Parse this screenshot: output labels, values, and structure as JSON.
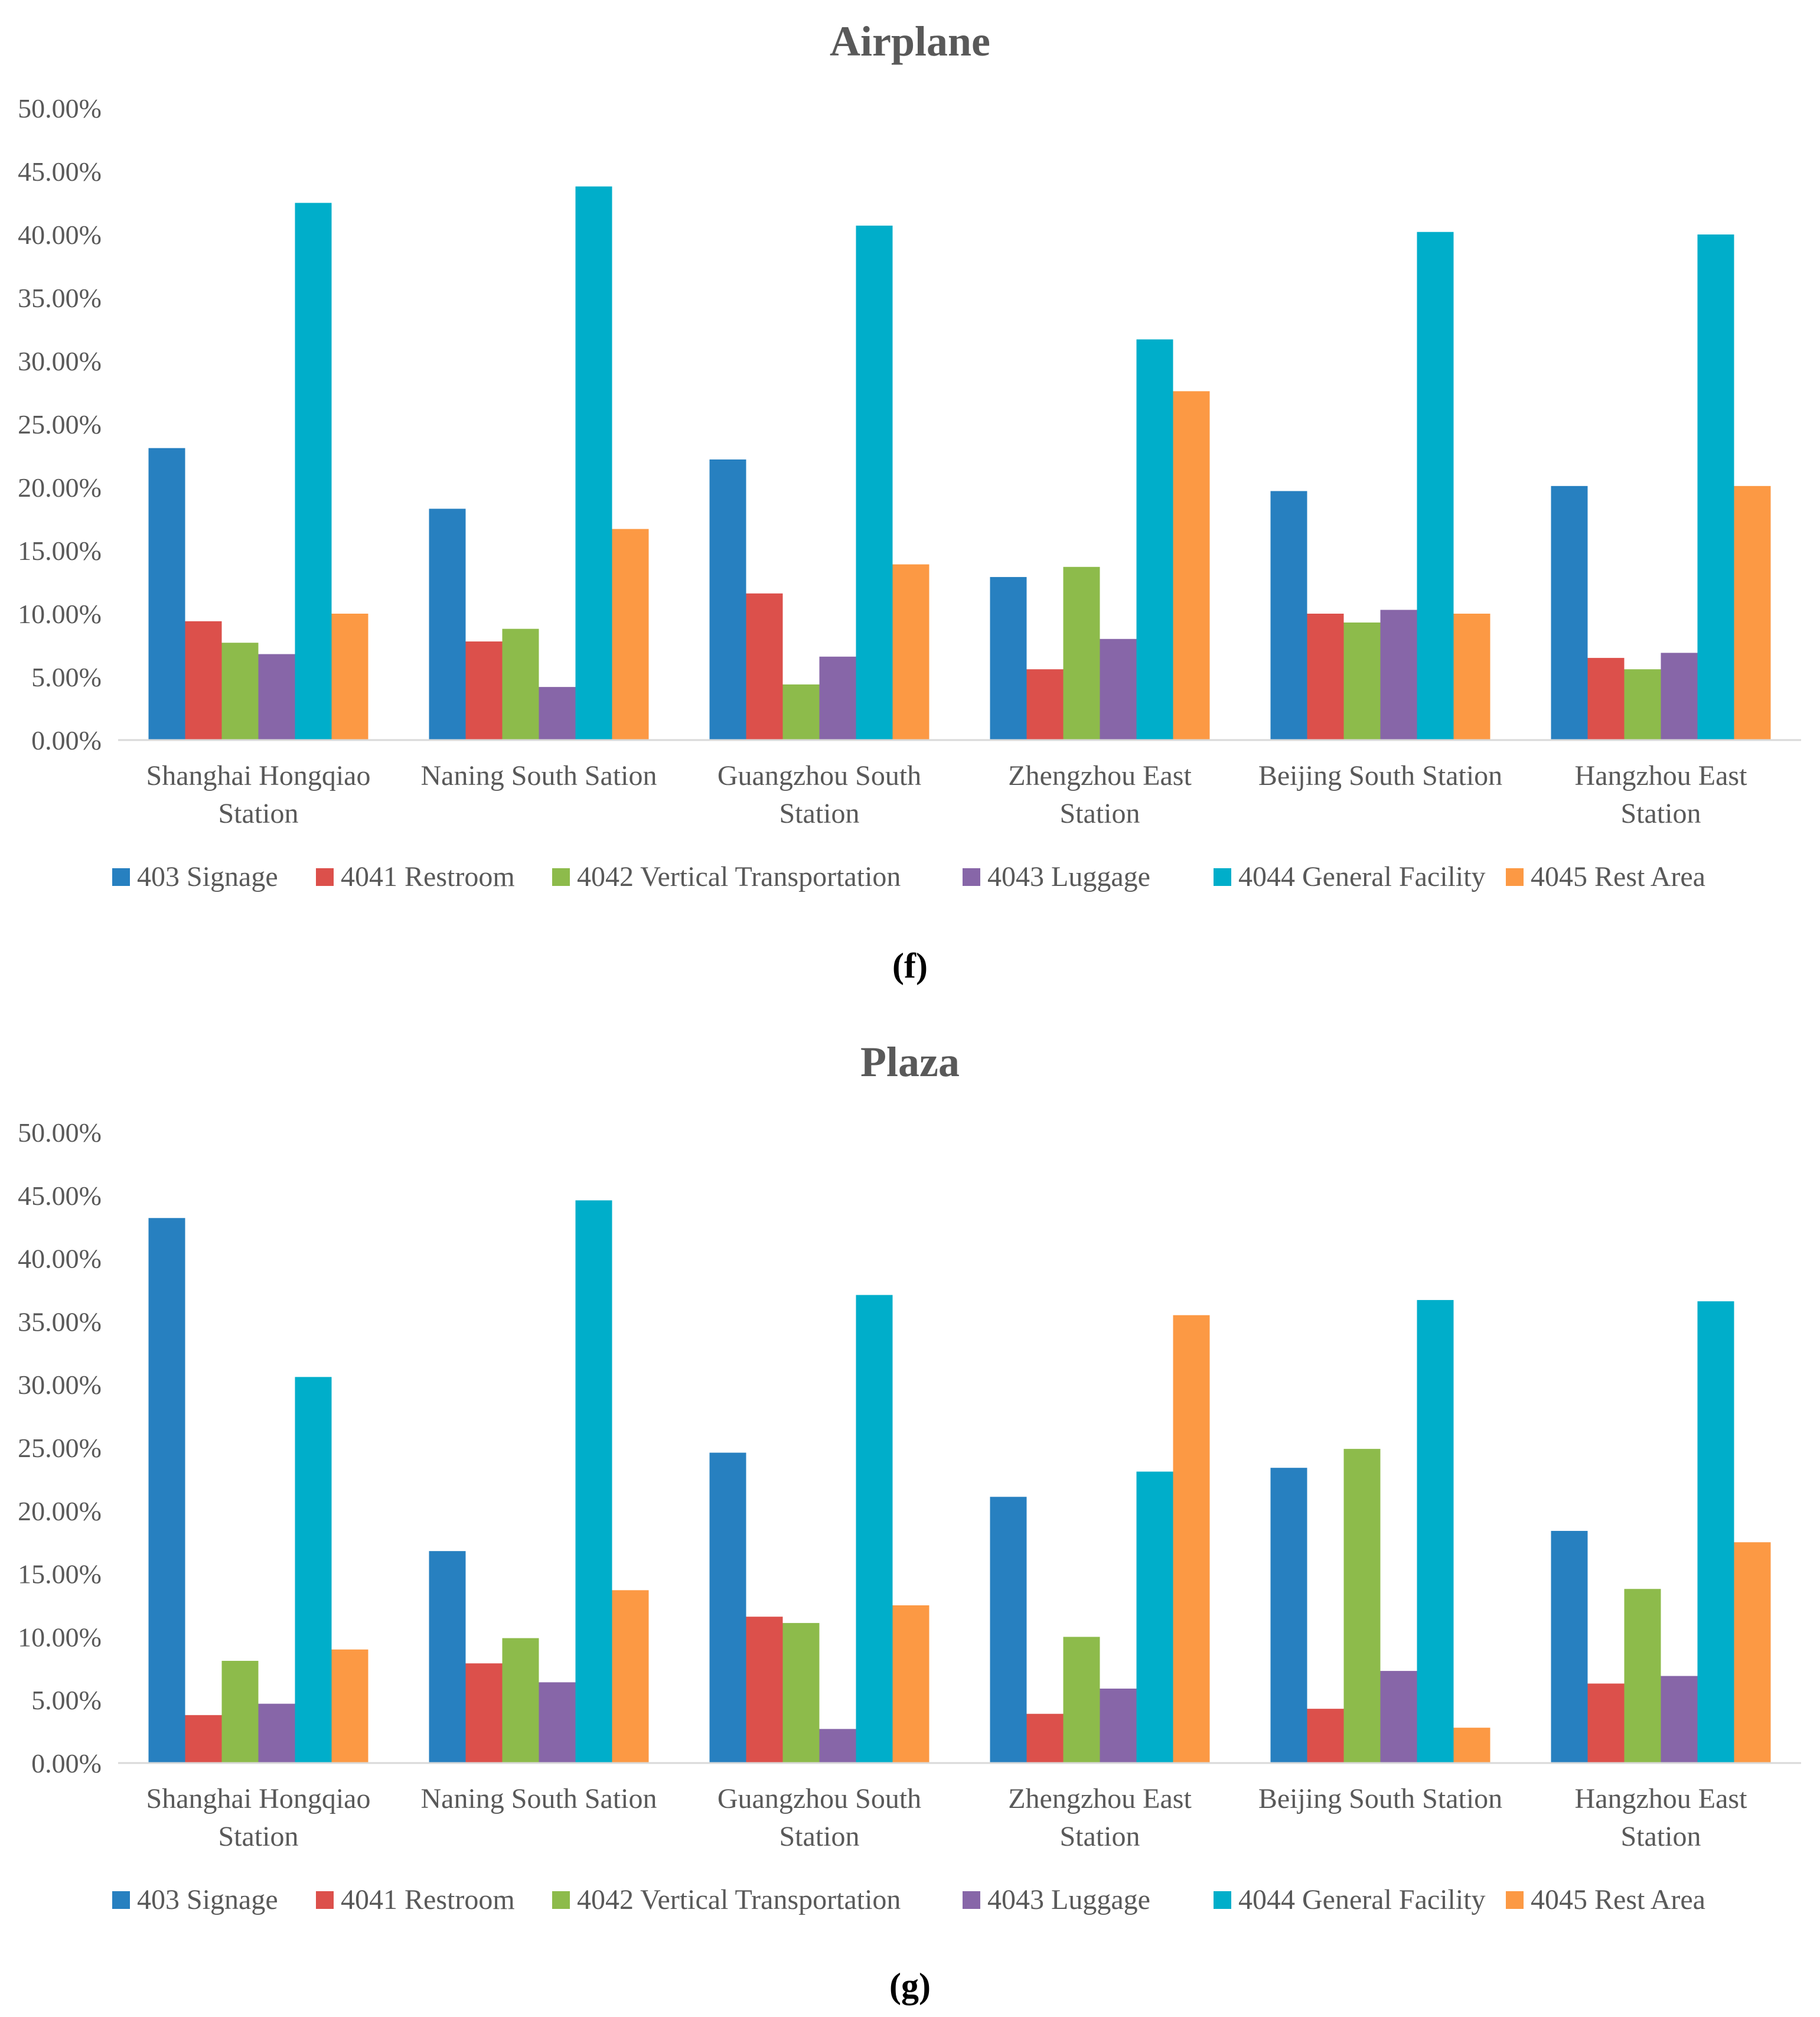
{
  "colors": {
    "series": [
      "#2780C0",
      "#DC504B",
      "#8DBB4B",
      "#8766A8",
      "#00AECA",
      "#FC9944"
    ],
    "text": "#595959",
    "axis": "#d9d9d9"
  },
  "chart_data": [
    {
      "type": "bar",
      "title": "Airplane",
      "caption": "(f)",
      "categories": [
        [
          "Shanghai Hongqiao",
          "Station"
        ],
        [
          "Naning South Sation"
        ],
        [
          "Guangzhou South",
          "Station"
        ],
        [
          "Zhengzhou East",
          "Station"
        ],
        [
          "Beijing South Station"
        ],
        [
          "Hangzhou East",
          "Station"
        ]
      ],
      "y_ticks": [
        "0.00%",
        "5.00%",
        "10.00%",
        "15.00%",
        "20.00%",
        "25.00%",
        "30.00%",
        "35.00%",
        "40.00%",
        "45.00%",
        "50.00%"
      ],
      "ylim": [
        0,
        50
      ],
      "grid": false,
      "legend_position": "bottom",
      "series": [
        {
          "name": "403 Signage",
          "values": [
            23.1,
            18.3,
            22.2,
            12.9,
            19.7,
            20.1
          ]
        },
        {
          "name": "4041 Restroom",
          "values": [
            9.4,
            7.8,
            11.6,
            5.6,
            10.0,
            6.5
          ]
        },
        {
          "name": "4042 Vertical Transportation",
          "values": [
            7.7,
            8.8,
            4.4,
            13.7,
            9.3,
            5.6
          ]
        },
        {
          "name": "4043 Luggage",
          "values": [
            6.8,
            4.2,
            6.6,
            8.0,
            10.3,
            6.9
          ]
        },
        {
          "name": "4044 General Facility",
          "values": [
            42.5,
            43.8,
            40.7,
            31.7,
            40.2,
            40.0
          ]
        },
        {
          "name": "4045 Rest Area",
          "values": [
            10.0,
            16.7,
            13.9,
            27.6,
            10.0,
            20.1
          ]
        }
      ]
    },
    {
      "type": "bar",
      "title": "Plaza",
      "caption": "(g)",
      "categories": [
        [
          "Shanghai Hongqiao",
          "Station"
        ],
        [
          "Naning South Sation"
        ],
        [
          "Guangzhou South",
          "Station"
        ],
        [
          "Zhengzhou East",
          "Station"
        ],
        [
          "Beijing South Station"
        ],
        [
          "Hangzhou East",
          "Station"
        ]
      ],
      "y_ticks": [
        "0.00%",
        "5.00%",
        "10.00%",
        "15.00%",
        "20.00%",
        "25.00%",
        "30.00%",
        "35.00%",
        "40.00%",
        "45.00%",
        "50.00%"
      ],
      "ylim": [
        0,
        50
      ],
      "grid": false,
      "legend_position": "bottom",
      "series": [
        {
          "name": "403 Signage",
          "values": [
            43.2,
            16.8,
            24.6,
            21.1,
            23.4,
            18.4
          ]
        },
        {
          "name": "4041 Restroom",
          "values": [
            3.8,
            7.9,
            11.6,
            3.9,
            4.3,
            6.3
          ]
        },
        {
          "name": "4042 Vertical Transportation",
          "values": [
            8.1,
            9.9,
            11.1,
            10.0,
            24.9,
            13.8
          ]
        },
        {
          "name": "4043 Luggage",
          "values": [
            4.7,
            6.4,
            2.7,
            5.9,
            7.3,
            6.9
          ]
        },
        {
          "name": "4044 General Facility",
          "values": [
            30.6,
            44.6,
            37.1,
            23.1,
            36.7,
            36.6
          ]
        },
        {
          "name": "4045 Rest Area",
          "values": [
            9.0,
            13.7,
            12.5,
            35.5,
            2.8,
            17.5
          ]
        }
      ]
    }
  ]
}
